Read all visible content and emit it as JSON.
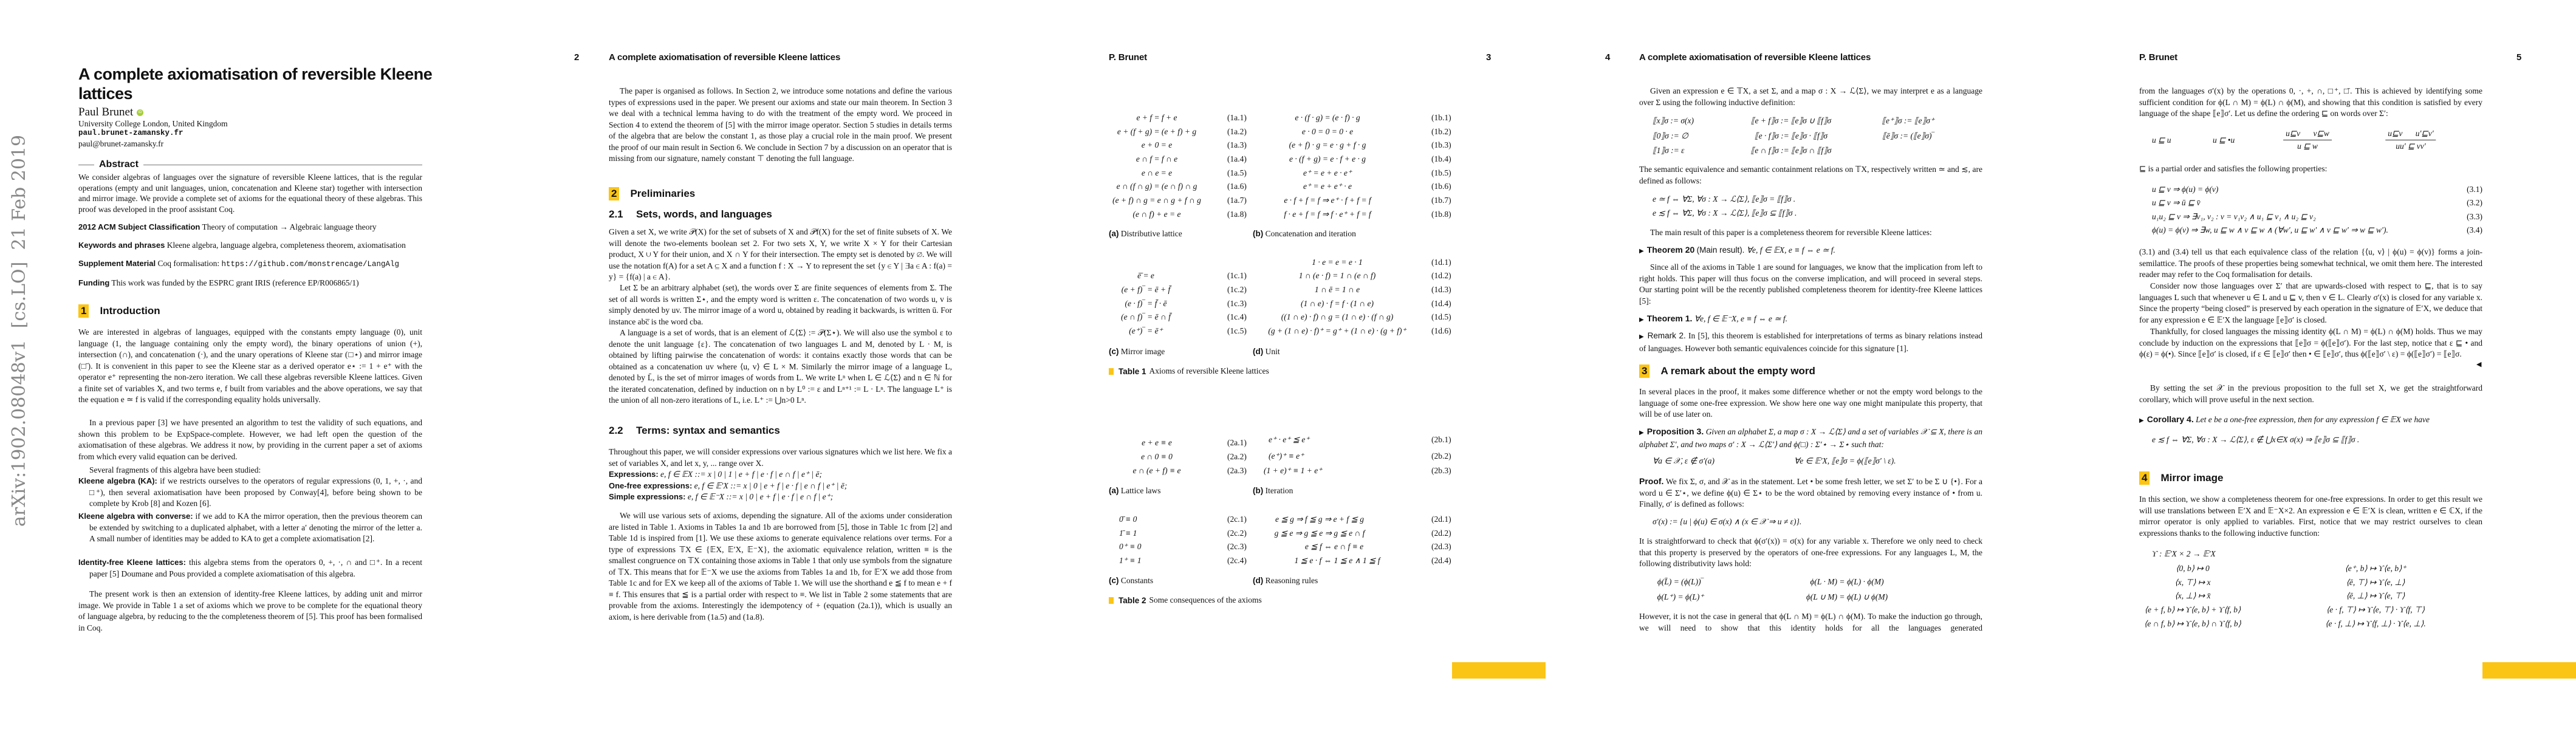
{
  "arxiv_stamp": "arXiv:1902.08048v1  [cs.LO]  21 Feb 2019",
  "running_title": "A complete axiomatisation of reversible Kleene lattices",
  "running_author": "P. Brunet",
  "accent_color": "#fbc515",
  "page1": {
    "title_line1": "A complete axiomatisation of reversible Kleene",
    "title_line2": "lattices",
    "author": "Paul Brunet",
    "orcid_icon": "iD",
    "affiliation": "University College London, United Kingdom",
    "homepage": "paul.brunet-zamansky.fr",
    "email": "paul@brunet-zamansky.fr",
    "abstract_heading": "Abstract",
    "abstract": "We consider algebras of languages over the signature of reversible Kleene lattices, that is the regular operations (empty and unit languages, union, concatenation and Kleene star) together with intersection and mirror image. We provide a complete set of axioms for the equational theory of these algebras. This proof was developed in the proof assistant Coq.",
    "acm_label": "2012 ACM Subject Classification",
    "acm": "Theory of computation → Algebraic language theory",
    "keywords_label": "Keywords and phrases",
    "keywords": "Kleene algebra, language algebra, completeness theorem, axiomatisation",
    "supplement_label": "Supplement Material",
    "supplement_text": "Coq formalisation:",
    "supplement_url": "https://github.com/monstrencage/LangAlg",
    "funding_label": "Funding",
    "funding": "This work was funded by the ESPRC grant IRIS (reference EP/R006865/1)",
    "section_number": "1",
    "section_title": "Introduction",
    "intro_p1": "We are interested in algebras of languages, equipped with the constants empty language (0), unit language (1, the language containing only the empty word), the binary operations of union (+), intersection (∩), and concatenation (·), and the unary operations of Kleene star (□⋆) and mirror image (□̄). It is convenient in this paper to see the Kleene star as a derived operator e⋆ := 1 + e⁺ with the operator e⁺ representing the non-zero iteration. We call these algebras reversible Kleene lattices. Given a finite set of variables X, and two terms e, f built from variables and the above operations, we say that the equation e ≃ f is valid if the corresponding equality holds universally.",
    "intro_p2": "In a previous paper [3] we have presented an algorithm to test the validity of such equations, and shown this problem to be ExpSpace-complete. However, we had left open the question of the axiomatisation of these algebras. We address it now, by providing in the current paper a set of axioms from which every valid equation can be derived.",
    "intro_p3": "Several fragments of this algebra have been studied:",
    "fragments": [
      {
        "label": "Kleene algebra (KA):",
        "text": "if we restricts ourselves to the operators of regular expressions (0, 1, +, ·, and □⁺), then several axiomatisation have been proposed by Conway[4], before being shown to be complete by Krob [8] and Kozen [6]."
      },
      {
        "label": "Kleene algebra with converse:",
        "text": "if we add to KA the mirror operation, then the previous theorem can be extended by switching to a duplicated alphabet, with a letter a′ denoting the mirror of the letter a. A small number of identities may be added to KA to get a complete axiomatisation [2]."
      },
      {
        "label": "Identity-free Kleene lattices:",
        "text": "this algebra stems from the operators 0, +, ·, ∩ and □⁺. In a recent paper [5] Doumane and Pous provided a complete axiomatisation of this algebra."
      }
    ],
    "intro_p4": "The present work is then an extension of identity-free Kleene lattices, by adding unit and mirror image. We provide in Table 1 a set of axioms which we prove to be complete for the equational theory of language algebra, by reducing to the the completeness theorem of [5]. This proof has been formalised in Coq."
  },
  "page2": {
    "number": "2",
    "p_outline": "The paper is organised as follows. In Section 2, we introduce some notations and define the various types of expressions used in the paper. We present our axioms and state our main theorem. In Section 3 we deal with a technical lemma having to do with the treatment of the empty word. We proceed in Section 4 to extend the theorem of [5] with the mirror image operator. Section 5 studies in details terms of the algebra that are below the constant 1, as those play a crucial role in the main proof. We present the proof of our main result in Section 6. We conclude in Section 7 by a discussion on an operator that is missing from our signature, namely constant ⊤ denoting the full language.",
    "section_number": "2",
    "section_title": "Preliminaries",
    "sub1_number": "2.1",
    "sub1_title": "Sets, words, and languages",
    "p_sets": "Given a set X, we write 𝒫(X) for the set of subsets of X and 𝒫f(X) for the set of finite subsets of X. We will denote the two-elements boolean set 2. For two sets X, Y, we write X × Y for their Cartesian product, X ∪ Y for their union, and X ∩ Y for their intersection. The empty set is denoted by ∅. We will use the notation f(A) for a set A ⊆ X and a function f : X → Y to represent the set {y ∈ Y | ∃a ∈ A : f(a) = y} = {f(a) | a ∈ A}.",
    "p_words": "Let Σ be an arbitrary alphabet (set), the words over Σ are finite sequences of elements from Σ. The set of all words is written Σ⋆, and the empty word is written ε. The concatenation of two words u, v is simply denoted by uv. The mirror image of a word u, obtained by reading it backwards, is written ū. For instance abc̅ is the word cba.",
    "p_lang": "A language is a set of words, that is an element of ℒ⟨Σ⟩ := 𝒫(Σ⋆). We will also use the symbol ε to denote the unit language {ε}. The concatenation of two languages L and M, denoted by L · M, is obtained by lifting pairwise the concatenation of words: it contains exactly those words that can be obtained as a concatenation uv where ⟨u, v⟩ ∈ L × M. Similarly the mirror image of a language L, denoted by L̄, is the set of mirror images of words from L. We write Lⁿ when L ∈ ℒ⟨Σ⟩ and n ∈ ℕ for the iterated concatenation, defined by induction on n by L⁰ := ε and Lⁿ⁺¹ := L · Lⁿ. The language L⁺ is the union of all non-zero iterations of L, i.e. L⁺ := ⋃n>0 Lⁿ.",
    "sub2_number": "2.2",
    "sub2_title": "Terms: syntax and semantics",
    "p_terms": "Throughout this paper, we will consider expressions over various signatures which we list here. We fix a set of variables X, and let x, y, ... range over X.",
    "grammar": [
      {
        "label": "Expressions:",
        "text": "e, f ∈ 𝔼X ::= x | 0 | 1 | e + f | e · f | e ∩ f | e⁺ | ē;"
      },
      {
        "label": "One-free expressions:",
        "text": "e, f ∈ 𝔼′X ::= x | 0 | e + f | e · f | e ∩ f | e⁺ | ē;"
      },
      {
        "label": "Simple expressions:",
        "text": "e, f ∈ 𝔼⁻X ::= x | 0 | e + f | e · f | e ∩ f | e⁺;"
      }
    ],
    "p_axioms": "We will use various sets of axioms, depending the signature. All of the axioms under consideration are listed in Table 1. Axioms in Tables 1a and 1b are borrowed from [5], those in Table 1c from [2] and Table 1d is inspired from [1]. We use these axioms to generate equivalence relations over terms. For a type of expressions 𝕋X ∈ {𝔼X, 𝔼′X, 𝔼⁻X}, the axiomatic equivalence relation, written ≡ is the smallest congruence on 𝕋X containing those axioms in Table 1 that only use symbols from the signature of 𝕋X. This means that for 𝔼⁻X we use the axioms from Tables 1a and 1b, for 𝔼′X we add those from Table 1c and for 𝔼X we keep all of the axioms of Table 1. We will use the shorthand e ≦ f to mean e + f ≡ f. This ensures that ≦ is a partial order with respect to ≡. We list in Table 2 some statements that are provable from the axioms. Interestingly the idempotency of + (equation (2a.1)), which is usually an axiom, is here derivable from (1a.5) and (1a.8)."
  },
  "page3": {
    "number": "3",
    "table1": {
      "a": {
        "rows": [
          {
            "eq": "e + f = f + e",
            "tag": "(1a.1)"
          },
          {
            "eq": "e + (f + g) = (e + f) + g",
            "tag": "(1a.2)"
          },
          {
            "eq": "e + 0 = e",
            "tag": "(1a.3)"
          },
          {
            "eq": "e ∩ f = f ∩ e",
            "tag": "(1a.4)"
          },
          {
            "eq": "e ∩ e = e",
            "tag": "(1a.5)"
          },
          {
            "eq": "e ∩ (f ∩ g) = (e ∩ f) ∩ g",
            "tag": "(1a.6)"
          },
          {
            "eq": "(e + f) ∩ g = e ∩ g + f ∩ g",
            "tag": "(1a.7)"
          },
          {
            "eq": "(e ∩ f) + e = e",
            "tag": "(1a.8)"
          }
        ],
        "letter": "(a)",
        "caption": "Distributive lattice"
      },
      "b": {
        "rows": [
          {
            "eq": "e · (f · g) = (e · f) · g",
            "tag": "(1b.1)"
          },
          {
            "eq": "e · 0 = 0 = 0 · e",
            "tag": "(1b.2)"
          },
          {
            "eq": "(e + f) · g = e · g + f · g",
            "tag": "(1b.3)"
          },
          {
            "eq": "e · (f + g) = e · f + e · g",
            "tag": "(1b.4)"
          },
          {
            "eq": "e⁺ = e + e · e⁺",
            "tag": "(1b.5)"
          },
          {
            "eq": "e⁺ = e + e⁺ · e",
            "tag": "(1b.6)"
          },
          {
            "eq": "e · f + f = f ⇒ e⁺ · f + f = f",
            "tag": "(1b.7)"
          },
          {
            "eq": "f · e + f = f ⇒ f · e⁺ + f = f",
            "tag": "(1b.8)"
          }
        ],
        "letter": "(b)",
        "caption": "Concatenation and iteration"
      },
      "c": {
        "rows": [
          {
            "eq": "ē̄ = e",
            "tag": "(1c.1)"
          },
          {
            "eq": "(e + f)‾ = ē + f̄",
            "tag": "(1c.2)"
          },
          {
            "eq": "(e · f)‾ = f̄ · ē",
            "tag": "(1c.3)"
          },
          {
            "eq": "(e ∩ f)‾ = ē ∩ f̄",
            "tag": "(1c.4)"
          },
          {
            "eq": "(e⁺)‾ = ē⁺",
            "tag": "(1c.5)"
          }
        ],
        "letter": "(c)",
        "caption": "Mirror image"
      },
      "d": {
        "rows": [
          {
            "eq": "1 · e = e = e · 1",
            "tag": "(1d.1)"
          },
          {
            "eq": "1 ∩ (e · f) = 1 ∩ (e ∩ f)",
            "tag": "(1d.2)"
          },
          {
            "eq": "1 ∩ ē = 1 ∩ e",
            "tag": "(1d.3)"
          },
          {
            "eq": "(1 ∩ e) · f = f · (1 ∩ e)",
            "tag": "(1d.4)"
          },
          {
            "eq": "((1 ∩ e) · f) ∩ g = (1 ∩ e) · (f ∩ g)",
            "tag": "(1d.5)"
          },
          {
            "eq": "(g + (1 ∩ e) · f)⁺ = g⁺ + (1 ∩ e) · (g + f)⁺",
            "tag": "(1d.6)"
          }
        ],
        "letter": "(d)",
        "caption": "Unit"
      },
      "label": "Table 1",
      "caption": "Axioms of reversible Kleene lattices"
    },
    "table2": {
      "a": {
        "rows": [
          {
            "eq": "e + e ≡ e",
            "tag": "(2a.1)"
          },
          {
            "eq": "e ∩ 0 ≡ 0",
            "tag": "(2a.2)"
          },
          {
            "eq": "e ∩ (e + f) ≡ e",
            "tag": "(2a.3)"
          }
        ],
        "letter": "(a)",
        "caption": "Lattice laws"
      },
      "b": {
        "rows": [
          {
            "eq": "e⁺ · e⁺ ≦ e⁺",
            "tag": "(2b.1)"
          },
          {
            "eq": "(e⁺)⁺ ≡ e⁺",
            "tag": "(2b.2)"
          },
          {
            "eq": "(1 + e)⁺ ≡ 1 + e⁺",
            "tag": "(2b.3)"
          }
        ],
        "letter": "(b)",
        "caption": "Iteration"
      },
      "c": {
        "rows": [
          {
            "eq": "0̄ ≡ 0",
            "tag": "(2c.1)"
          },
          {
            "eq": "1̄ ≡ 1",
            "tag": "(2c.2)"
          },
          {
            "eq": "0⁺ ≡ 0",
            "tag": "(2c.3)"
          },
          {
            "eq": "1⁺ ≡ 1",
            "tag": "(2c.4)"
          }
        ],
        "letter": "(c)",
        "caption": "Constants"
      },
      "d": {
        "rows": [
          {
            "eq": "e ≦ g ⇒ f ≦ g ⇒ e + f ≦ g",
            "tag": "(2d.1)"
          },
          {
            "eq": "g ≦ e ⇒ g ≦ e ⇒ g ≦ e ∩ f",
            "tag": "(2d.2)"
          },
          {
            "eq": "e ≦ f ⇔ e ∩ f ≡ e",
            "tag": "(2d.3)"
          },
          {
            "eq": "1 ≦ e · f ⇔ 1 ≦ e ∧ 1 ≦ f",
            "tag": "(2d.4)"
          }
        ],
        "letter": "(d)",
        "caption": "Reasoning rules"
      },
      "label": "Table 2",
      "caption": "Some consequences of the axioms"
    }
  },
  "page4": {
    "number": "4",
    "p_interp": "Given an expression e ∈ 𝕋X, a set Σ, and a map σ : X → ℒ⟨Σ⟩, we may interpret e as a language over Σ using the following inductive definition:",
    "semantics": [
      "⟦x⟧σ := σ(x)",
      "⟦0⟧σ := ∅",
      "⟦1⟧σ := ε",
      "⟦e + f⟧σ := ⟦e⟧σ ∪ ⟦f⟧σ",
      "⟦e · f⟧σ := ⟦e⟧σ · ⟦f⟧σ",
      "⟦e ∩ f⟧σ := ⟦e⟧σ ∩ ⟦f⟧σ",
      "⟦e⁺⟧σ := ⟦e⟧σ⁺",
      "⟦ē⟧σ := (⟦e⟧σ)‾"
    ],
    "p_semantic": "The semantic equivalence and semantic containment relations on 𝕋X, respectively written ≃ and ≲, are defined as follows:",
    "defs": [
      "e ≃ f ⇔ ∀Σ, ∀σ : X → ℒ⟨Σ⟩, ⟦e⟧σ = ⟦f⟧σ .",
      "e ≲ f ⇔ ∀Σ, ∀σ : X → ℒ⟨Σ⟩, ⟦e⟧σ ⊆ ⟦f⟧σ ."
    ],
    "p_main": "The main result of this paper is a completeness theorem for reversible Kleene lattices:",
    "thm20_label": "Theorem 20",
    "thm20_note": "(Main result).",
    "thm20_text": "∀e, f ∈ 𝔼X, e ≡ f ⇔ e ≃ f.",
    "p_since": "Since all of the axioms in Table 1 are sound for languages, we know that the implication from left to right holds. This paper will thus focus on the converse implication, and will proceed in several steps. Our starting point will be the recently published completeness theorem for identity-free Kleene lattices [5]:",
    "thm1_label": "Theorem 1.",
    "thm1_text": "∀e, f ∈ 𝔼⁻X, e ≡ f ⇔ e ≃ f.",
    "rem2_label": "Remark 2.",
    "rem2_text": "In [5], this theorem is established for interpretations of terms as binary relations instead of languages. However both semantic equivalences coincide for this signature [1].",
    "section_number": "3",
    "section_title": "A remark about the empty word",
    "p_several": "In several places in the proof, it makes some difference whether or not the empty word belongs to the language of some one-free expression. We show here one way one might manipulate this property, that will be of use later on.",
    "prop3_label": "Proposition 3.",
    "prop3_text": "Given an alphabet Σ, a map σ : X → ℒ⟨Σ⟩ and a set of variables 𝒳 ⊆ X, there is an alphabet Σ′, and two maps σ′ : X → ℒ⟨Σ′⟩ and ϕ(□) : Σ′⋆ → Σ⋆ such that:",
    "prop3_eq_left": "∀a ∈ 𝒳, ε ∉ σ′(a)",
    "prop3_eq_right": "∀e ∈ 𝔼′X, ⟦e⟧σ = ϕ(⟦e⟧σ′ \\ ε).",
    "proof_label": "Proof.",
    "proof_text": "We fix Σ, σ, and 𝒳 as in the statement. Let • be some fresh letter, we set Σ′ to be Σ ∪ {•}. For a word u ∈ Σ′⋆, we define ϕ(u) ∈ Σ⋆ to be the word obtained by removing every instance of • from u. Finally, σ′ is defined as follows:",
    "sigma_def": "σ′(x) := {u | ϕ(u) ∈ σ(x) ∧ (x ∈ 𝒳 ⇒ u ≠ ε)}.",
    "p_straight": "It is straightforward to check that ϕ(σ′(x)) = σ(x) for any variable x. Therefore we only need to check that this property is preserved by the operators of one-free expressions. For any languages L, M, the following distributivity laws hold:",
    "phi_laws": [
      "ϕ(L̄) = (ϕ(L))‾",
      "ϕ(L · M) = ϕ(L) · ϕ(M)",
      "ϕ(L⁺) = ϕ(L)⁺",
      "ϕ(L ∪ M) = ϕ(L) ∪ ϕ(M)"
    ],
    "p_however": "However, it is not the case in general that ϕ(L ∩ M) = ϕ(L) ∩ ϕ(M). To make the induction go through, we will need to show that this identity holds for all the languages generated"
  },
  "page5": {
    "number": "5",
    "p_from": "from the languages σ′(x) by the operations 0, ·, +, ∩, □⁺, □̄. This is achieved by identifying some sufficient condition for ϕ(L ∩ M) = ϕ(L) ∩ ϕ(M), and showing that this condition is satisfied by every language of the shape ⟦e⟧σ′. Let us define the ordering ⊑ on words over Σ′:",
    "rules": {
      "axiom1": "u ⊑ u",
      "axiom2": "u ⊑ •u",
      "trans_premises": "u⊑v v⊑w",
      "trans_conclusion": "u ⊑ w",
      "cong_premises": "u⊑v u′⊑v′",
      "cong_conclusion": "uu′ ⊑ vv′"
    },
    "p_partial": "⊑ is a partial order and satisfies the following properties:",
    "props": [
      {
        "eq": "u ⊑ v ⇒ ϕ(u) = ϕ(v)",
        "tag": "(3.1)"
      },
      {
        "eq": "u ⊑ v ⇒ ū ⊑ v̄",
        "tag": "(3.2)"
      },
      {
        "eq": "u₁u₂ ⊑ v ⇒ ∃v₁, v₂ : v = v₁v₂ ∧ u₁ ⊑ v₁ ∧ u₂ ⊑ v₂",
        "tag": "(3.3)"
      },
      {
        "eq": "ϕ(u) = ϕ(v) ⇒ ∃w, u ⊑ w ∧ v ⊑ w ∧ (∀w′, u ⊑ w′ ∧ v ⊑ w′ ⇒ w ⊑ w′).",
        "tag": "(3.4)"
      }
    ],
    "p_join": "(3.1) and (3.4) tell us that each equivalence class of the relation {⟨u, v⟩ | ϕ(u) = ϕ(v)} forms a join-semilattice. The proofs of these properties being somewhat technical, we omit them here. The interested reader may refer to the Coq formalisation for details.",
    "p_consider": "Consider now those languages over Σ′ that are upwards-closed with respect to ⊑, that is to say languages L such that whenever u ∈ L and u ⊑ v, then v ∈ L. Clearly σ′(x) is closed for any variable x. Since the property “being closed” is preserved by each operation in the signature of 𝔼′X, we deduce that for any expression e ∈ 𝔼′X the language ⟦e⟧σ′ is closed.",
    "p_thankfully": "Thankfully, for closed languages the missing identity ϕ(L ∩ M) = ϕ(L) ∩ ϕ(M) holds. Thus we may conclude by induction on the expressions that ⟦e⟧σ = ϕ(⟦e⟧σ′). For the last step, notice that ε ⊑ • and ϕ(ε) = ϕ(•). Since ⟦e⟧σ′ is closed, if ε ∈ ⟦e⟧σ′ then • ∈ ⟦e⟧σ′, thus ϕ(⟦e⟧σ′ \\ ε) = ϕ(⟦e⟧σ′) = ⟦e⟧σ.",
    "qed": "◀",
    "p_bysetting": "By setting the set 𝒳 in the previous proposition to the full set X, we get the straightforward corollary, which will prove useful in the next section.",
    "cor4_label": "Corollary 4.",
    "cor4_text": "Let e be a one-free expression, then for any expression f ∈ 𝔼X we have",
    "cor4_eq": "e ≲ f ⇔ ∀Σ, ∀σ : X → ℒ⟨Σ⟩, ε ∉ ⋃x∈X σ(x) ⇒ ⟦e⟧σ ⊆ ⟦f⟧σ .",
    "section_number": "4",
    "section_title": "Mirror image",
    "p_section": "In this section, we show a completeness theorem for one-free expressions. In order to get this result we will use translations between 𝔼′X and 𝔼⁻X×2. An expression e ∈ 𝔼′X is clean, written e ∈ ℂX, if the mirror operator is only applied to variables. First, notice that we may restrict ourselves to clean expressions thanks to the following inductive function:",
    "upsilon_sig": "ϒ : 𝔼′X × 2 → 𝔼′X",
    "upsilon_left": [
      "⟨0, b⟩ ↦ 0",
      "⟨x, ⊤⟩ ↦ x",
      "⟨x, ⊥⟩ ↦ x̄",
      "⟨e + f, b⟩ ↦ ϒ⟨e, b⟩ + ϒ⟨f, b⟩",
      "⟨e ∩ f, b⟩ ↦ ϒ⟨e, b⟩ ∩ ϒ⟨f, b⟩"
    ],
    "upsilon_right": [
      "⟨e⁺, b⟩ ↦ ϒ⟨e, b⟩⁺",
      "⟨ē, ⊤⟩ ↦ ϒ⟨e, ⊥⟩",
      "⟨ē, ⊥⟩ ↦ ϒ⟨e, ⊤⟩",
      "⟨e · f, ⊤⟩ ↦ ϒ⟨e, ⊤⟩ · ϒ⟨f, ⊤⟩",
      "⟨e · f, ⊥⟩ ↦ ϒ⟨f, ⊥⟩ · ϒ⟨e, ⊥⟩."
    ]
  }
}
